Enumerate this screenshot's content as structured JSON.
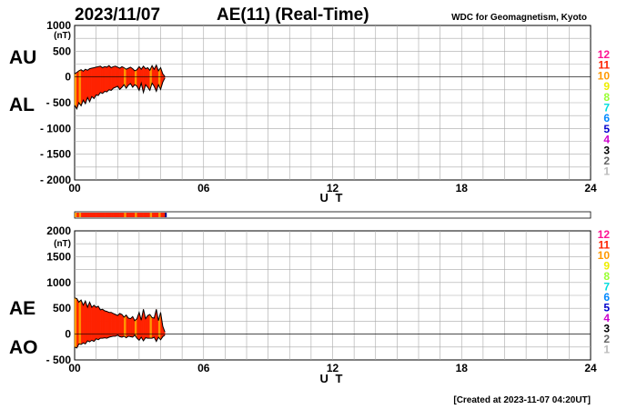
{
  "header": {
    "date": "2023/11/07",
    "title": "AE(11) (Real-Time)",
    "credit": "WDC for Geomagnetism, Kyoto"
  },
  "footer": {
    "created": "[Created at 2023-11-07 04:20UT]"
  },
  "unit_label": "(nT)",
  "x_axis_label": "U T",
  "top_labels": {
    "upper": "AU",
    "lower": "AL"
  },
  "bottom_labels": {
    "upper": "AE",
    "lower": "AO"
  },
  "level_scale": [
    {
      "label": "12",
      "color": "#ff1493"
    },
    {
      "label": "11",
      "color": "#ff2200"
    },
    {
      "label": "10",
      "color": "#ff9900"
    },
    {
      "label": "9",
      "color": "#eeee00"
    },
    {
      "label": "8",
      "color": "#99ff33"
    },
    {
      "label": "7",
      "color": "#00dddd"
    },
    {
      "label": "6",
      "color": "#0088ff"
    },
    {
      "label": "5",
      "color": "#0000cc"
    },
    {
      "label": "4",
      "color": "#cc00cc"
    },
    {
      "label": "3",
      "color": "#000000"
    },
    {
      "label": "2",
      "color": "#666666"
    },
    {
      "label": "1",
      "color": "#bbbbbb"
    }
  ],
  "chart_data": [
    {
      "type": "area",
      "name": "AU/AL",
      "x_label": "U T",
      "y_label": "(nT)",
      "xlim": [
        0,
        24
      ],
      "ylim": [
        -2000,
        1000
      ],
      "x_ticks": [
        "00",
        "06",
        "12",
        "18",
        "24"
      ],
      "y_ticks": [
        "1000",
        "500",
        "0",
        "- 500",
        "- 1000",
        "- 1500",
        "- 2000"
      ],
      "grid": true,
      "x": [
        0.0,
        0.1,
        0.2,
        0.3,
        0.4,
        0.5,
        0.6,
        0.7,
        0.8,
        0.9,
        1.0,
        1.1,
        1.2,
        1.3,
        1.4,
        1.5,
        1.6,
        1.7,
        1.8,
        1.9,
        2.0,
        2.1,
        2.2,
        2.3,
        2.4,
        2.5,
        2.6,
        2.7,
        2.8,
        2.9,
        3.0,
        3.1,
        3.2,
        3.3,
        3.4,
        3.5,
        3.6,
        3.7,
        3.8,
        3.9,
        4.0,
        4.1,
        4.2
      ],
      "series": [
        {
          "name": "AU",
          "values": [
            60,
            90,
            120,
            140,
            110,
            150,
            130,
            160,
            170,
            180,
            190,
            200,
            210,
            180,
            200,
            190,
            220,
            180,
            200,
            210,
            190,
            170,
            200,
            180,
            150,
            170,
            190,
            160,
            120,
            140,
            200,
            150,
            210,
            160,
            180,
            130,
            220,
            150,
            230,
            120,
            180,
            60,
            10
          ]
        },
        {
          "name": "AL",
          "values": [
            -550,
            -620,
            -500,
            -560,
            -450,
            -520,
            -400,
            -480,
            -380,
            -420,
            -350,
            -360,
            -300,
            -320,
            -280,
            -290,
            -250,
            -260,
            -220,
            -200,
            -180,
            -240,
            -200,
            -150,
            -220,
            -160,
            -130,
            -200,
            -150,
            -180,
            -260,
            -120,
            -300,
            -150,
            -200,
            -260,
            -120,
            -180,
            -280,
            -150,
            -240,
            -100,
            -20
          ]
        }
      ],
      "activity_level": [
        10,
        11,
        10,
        11,
        11,
        11,
        11,
        11,
        11,
        11,
        11,
        11,
        11,
        11,
        11,
        11,
        11,
        11,
        11,
        11,
        11,
        11,
        11,
        10,
        11,
        11,
        11,
        11,
        10,
        11,
        11,
        11,
        11,
        11,
        11,
        10,
        11,
        11,
        11,
        10,
        11,
        11,
        11
      ]
    },
    {
      "type": "area",
      "name": "AE/AO",
      "x_label": "U T",
      "y_label": "(nT)",
      "xlim": [
        0,
        24
      ],
      "ylim": [
        -500,
        2000
      ],
      "x_ticks": [
        "00",
        "06",
        "12",
        "18",
        "24"
      ],
      "y_ticks": [
        "2000",
        "1500",
        "1000",
        "500",
        "0",
        "- 500"
      ],
      "grid": true,
      "x": [
        0.0,
        0.1,
        0.2,
        0.3,
        0.4,
        0.5,
        0.6,
        0.7,
        0.8,
        0.9,
        1.0,
        1.1,
        1.2,
        1.3,
        1.4,
        1.5,
        1.6,
        1.7,
        1.8,
        1.9,
        2.0,
        2.1,
        2.2,
        2.3,
        2.4,
        2.5,
        2.6,
        2.7,
        2.8,
        2.9,
        3.0,
        3.1,
        3.2,
        3.3,
        3.4,
        3.5,
        3.6,
        3.7,
        3.8,
        3.9,
        4.0,
        4.1,
        4.2
      ],
      "series": [
        {
          "name": "AE",
          "values": [
            700,
            690,
            620,
            660,
            560,
            640,
            520,
            620,
            520,
            560,
            520,
            540,
            470,
            480,
            450,
            440,
            420,
            420,
            400,
            380,
            360,
            400,
            380,
            330,
            370,
            310,
            300,
            340,
            260,
            300,
            420,
            270,
            480,
            300,
            360,
            380,
            320,
            310,
            480,
            260,
            420,
            150,
            40
          ]
        },
        {
          "name": "AO",
          "values": [
            -250,
            -270,
            -190,
            -200,
            -170,
            -190,
            -130,
            -150,
            -120,
            -140,
            -90,
            -110,
            -80,
            -80,
            -70,
            -80,
            -60,
            -50,
            -40,
            -40,
            -20,
            -50,
            -60,
            -40,
            -70,
            -40,
            -50,
            -60,
            -20,
            -80,
            -120,
            -60,
            -130,
            -70,
            -80,
            -80,
            -80,
            -60,
            -140,
            -60,
            -110,
            -50,
            -20
          ]
        }
      ],
      "activity_level": [
        10,
        11,
        10,
        11,
        11,
        11,
        11,
        11,
        11,
        11,
        11,
        11,
        11,
        11,
        11,
        11,
        11,
        11,
        11,
        11,
        11,
        11,
        11,
        10,
        11,
        11,
        11,
        11,
        10,
        11,
        11,
        11,
        11,
        11,
        11,
        10,
        11,
        11,
        11,
        10,
        11,
        11,
        11
      ]
    }
  ]
}
